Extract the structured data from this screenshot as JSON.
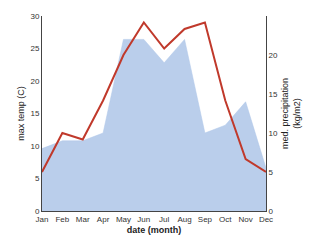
{
  "chart_data": {
    "type": "line",
    "xlabel": "date (month)",
    "ylabel": "max temp (C)",
    "y2label": "med. precipitation\n(kg/m2)",
    "categories": [
      "Jan",
      "Feb",
      "Mar",
      "Apr",
      "May",
      "Jun",
      "Jul",
      "Aug",
      "Sep",
      "Oct",
      "Nov",
      "Dec"
    ],
    "series": [
      {
        "type": "area",
        "axis": "y2",
        "color": "#aec6e8",
        "values": [
          8,
          9,
          9,
          10,
          22,
          22,
          19,
          22,
          10,
          11,
          14,
          5.5
        ]
      },
      {
        "type": "line",
        "color": "#c0392b",
        "values": [
          6,
          12,
          11,
          17,
          24,
          29,
          25,
          28,
          29,
          17,
          8,
          6
        ]
      }
    ],
    "ylim": [
      0,
      30
    ],
    "yticks": [
      0,
      5,
      10,
      15,
      20,
      25,
      30
    ],
    "y2lim": [
      0,
      25
    ],
    "y2ticks": [
      0,
      5,
      10,
      15,
      20
    ],
    "grid": false
  }
}
